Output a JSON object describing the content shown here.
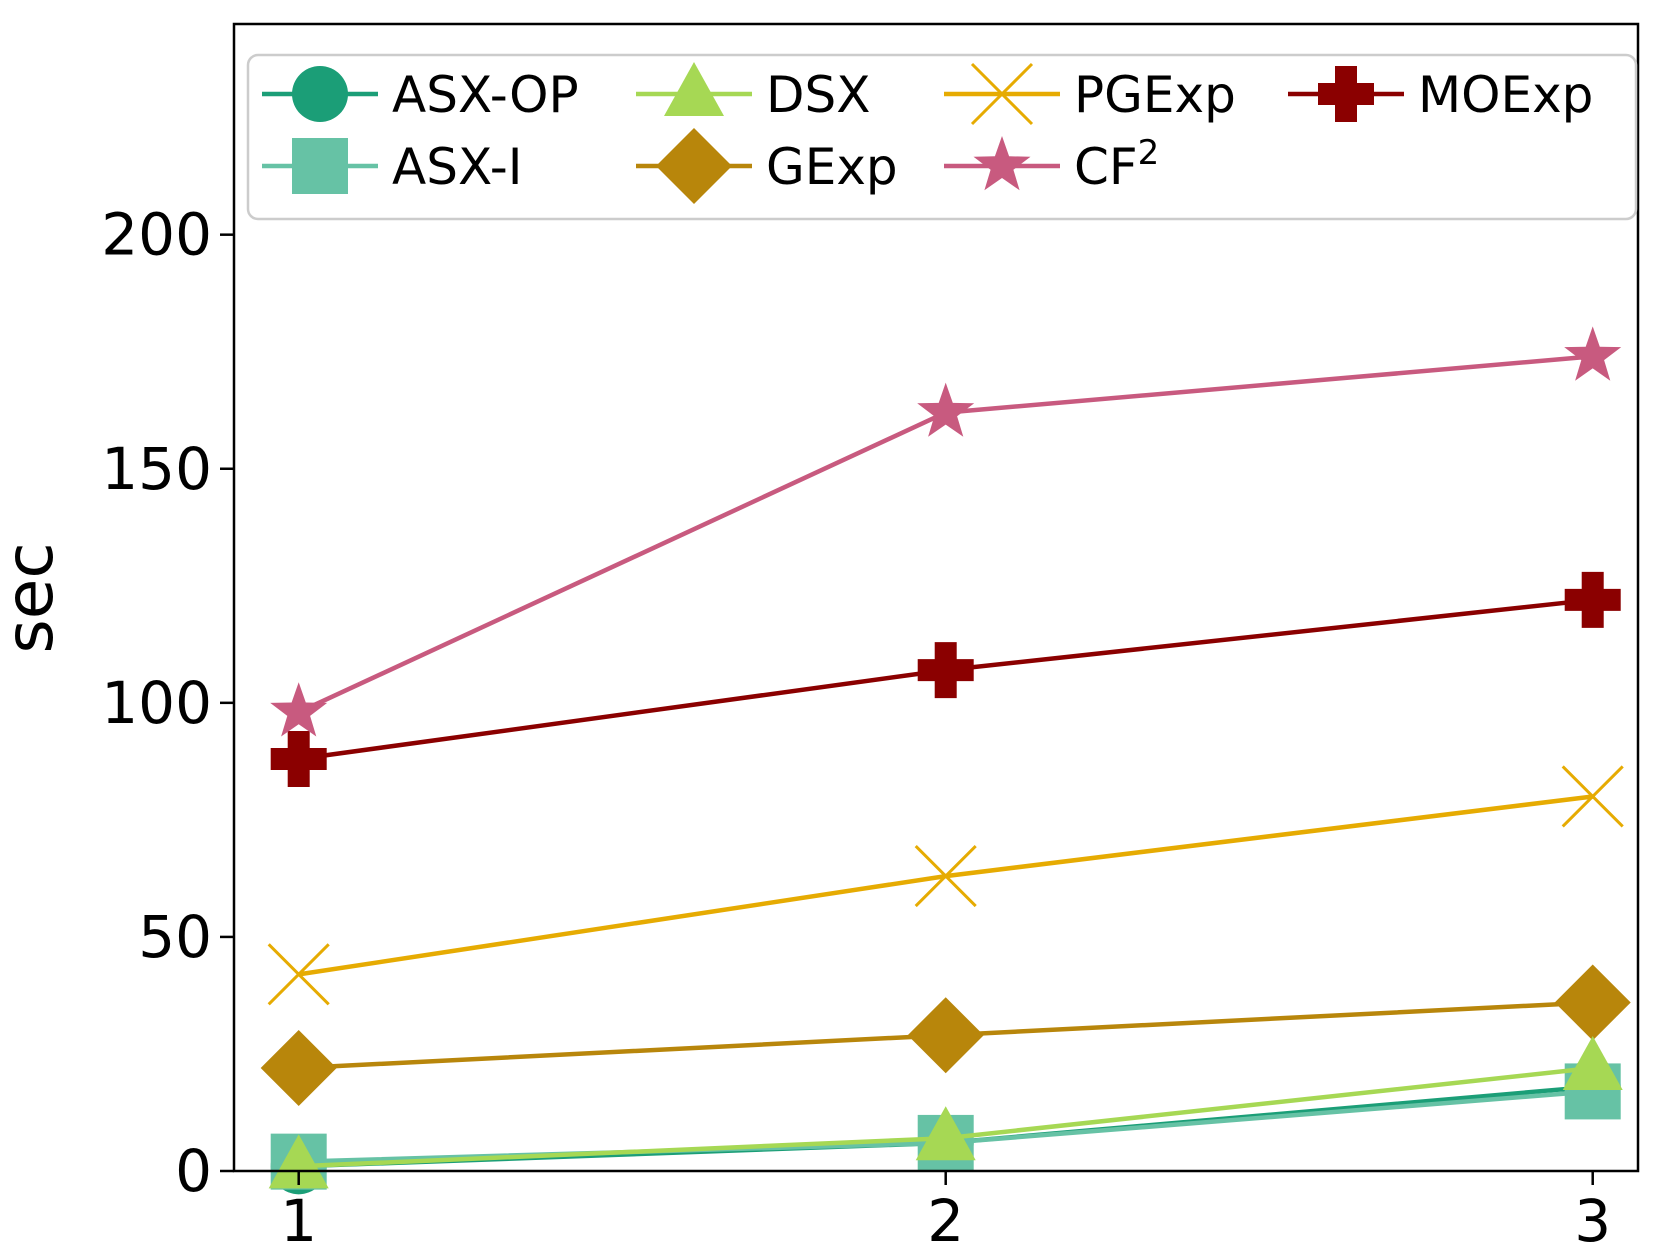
{
  "chart_data": {
    "type": "line",
    "title": "",
    "xlabel": "",
    "ylabel": "sec",
    "x": [
      1,
      2,
      3
    ],
    "x_tick_labels": [
      "1",
      "2",
      "3"
    ],
    "y_ticks": [
      0,
      50,
      100,
      150,
      200
    ],
    "y_tick_labels": [
      "0",
      "50",
      "100",
      "150",
      "200"
    ],
    "ylim": [
      0,
      245
    ],
    "xlim": [
      0.9,
      3.07
    ],
    "grid": false,
    "legend_position": "top",
    "legend_columns": 4,
    "series": [
      {
        "name": "ASX-OP",
        "marker": "circle",
        "color": "#1b9e77",
        "values": [
          1,
          6,
          18
        ]
      },
      {
        "name": "ASX-I",
        "marker": "square",
        "color": "#66c2a5",
        "values": [
          2,
          6,
          17
        ]
      },
      {
        "name": "DSX",
        "marker": "triangle",
        "color": "#a6d854",
        "values": [
          1,
          7,
          22
        ]
      },
      {
        "name": "GExp",
        "marker": "diamond",
        "color": "#b8860b",
        "values": [
          22,
          29,
          36
        ]
      },
      {
        "name": "PGExp",
        "marker": "x",
        "color": "#e6ab02",
        "values": [
          42,
          63,
          80
        ]
      },
      {
        "name": "CF",
        "name_superscript": "2",
        "marker": "star",
        "color": "#c85a7f",
        "values": [
          98,
          162,
          174
        ]
      },
      {
        "name": "MOExp",
        "marker": "plus",
        "color": "#8b0000",
        "values": [
          88,
          107,
          122
        ]
      }
    ]
  }
}
